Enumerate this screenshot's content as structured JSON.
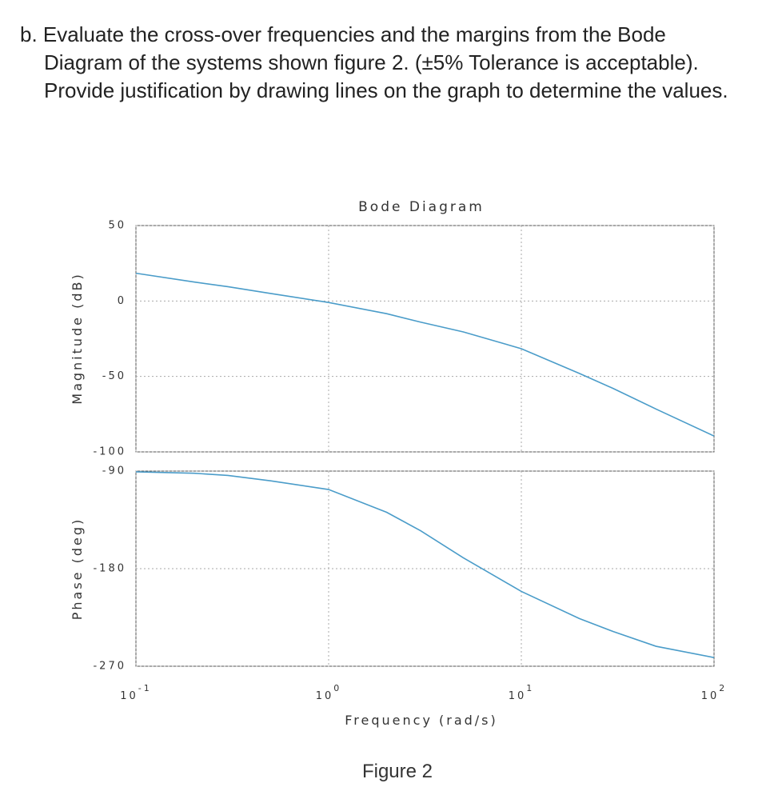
{
  "question": {
    "lines": [
      "b. Evaluate the cross-over frequencies and the margins from the Bode",
      "Diagram of the systems shown figure 2. (±5% Tolerance is acceptable).",
      "Provide justification by drawing lines on the graph to determine the values."
    ]
  },
  "chart_data": [
    {
      "type": "line",
      "title": "Bode Diagram",
      "ylabel": "Magnitude (dB)",
      "log_x": true,
      "grid": true,
      "x": [
        0.1,
        0.2,
        0.3,
        0.5,
        1,
        2,
        3,
        5,
        10,
        20,
        30,
        50,
        100
      ],
      "xlim": [
        0.1,
        100
      ],
      "ylim": [
        -100,
        50
      ],
      "yticks": [
        50,
        0,
        -50,
        -100
      ],
      "series": [
        {
          "color": "#4a9cc9",
          "values": [
            18.4,
            12.6,
            9.5,
            5,
            -1,
            -8.4,
            -14,
            -20.5,
            -31.6,
            -48,
            -58,
            -71.6,
            -89.5
          ]
        }
      ]
    },
    {
      "type": "line",
      "ylabel": "Phase (deg)",
      "xlabel": "Frequency (rad/s)",
      "log_x": true,
      "grid": true,
      "x": [
        0.1,
        0.2,
        0.3,
        0.5,
        1,
        2,
        3,
        5,
        7,
        10,
        20,
        30,
        50,
        100
      ],
      "xlim": [
        0.1,
        100
      ],
      "ylim": [
        -270,
        -90
      ],
      "yticks": [
        -90,
        -180,
        -270
      ],
      "xticks": [
        {
          "value": 0.1,
          "label": "10",
          "exponent": "-1"
        },
        {
          "value": 1,
          "label": "10",
          "exponent": "0"
        },
        {
          "value": 10,
          "label": "10",
          "exponent": "1"
        },
        {
          "value": 100,
          "label": "10",
          "exponent": "2"
        }
      ],
      "series": [
        {
          "color": "#4a9cc9",
          "values": [
            -90.7,
            -92,
            -94,
            -99,
            -107,
            -128,
            -145,
            -170,
            -185,
            -201,
            -226,
            -238,
            -251.6,
            -262
          ]
        }
      ]
    }
  ],
  "caption": "Figure 2"
}
